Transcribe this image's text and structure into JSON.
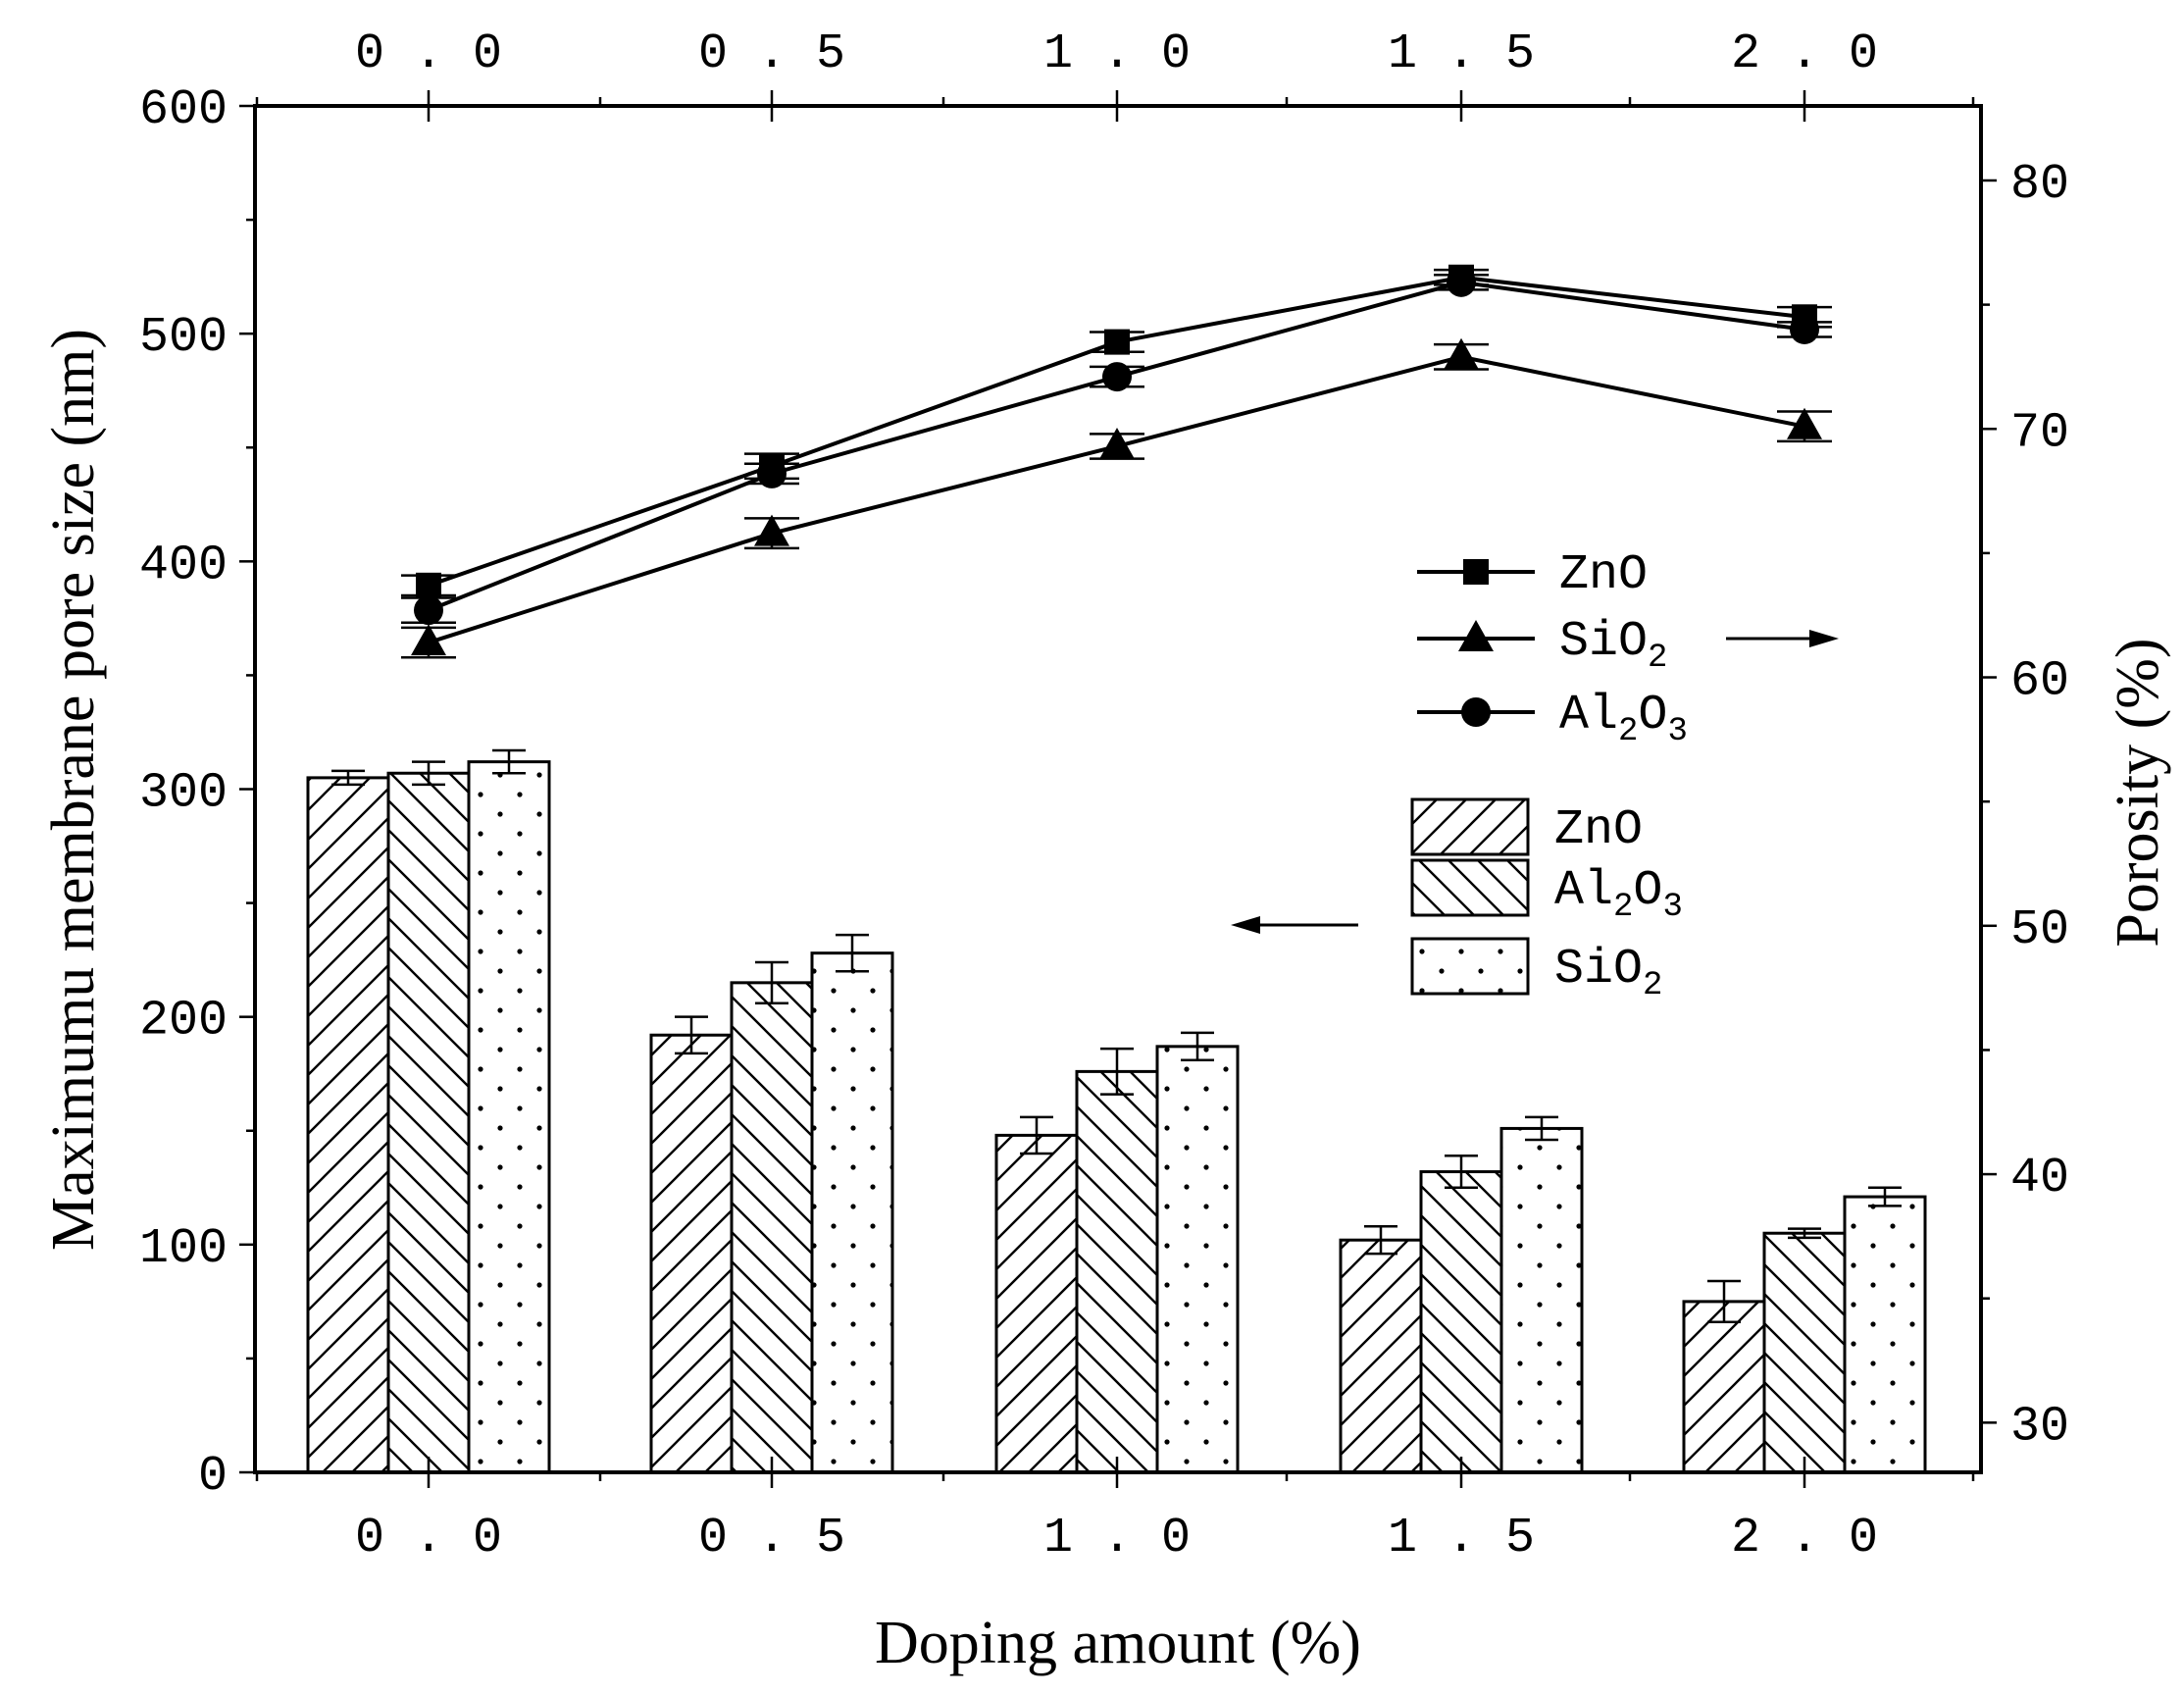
{
  "chart_data": {
    "type": "bar+line",
    "categories": [
      "0.0",
      "0.5",
      "1.0",
      "1.5",
      "2.0"
    ],
    "xlabel": "Doping amount (%)",
    "ylabel_left": "Maximumu membrane pore size (nm)",
    "ylabel_right": "Porosity (%)",
    "ylim_left": [
      0,
      600
    ],
    "yticks_left": [
      "0",
      "100",
      "200",
      "300",
      "400",
      "500",
      "600"
    ],
    "ylim_right": [
      28,
      83
    ],
    "yticks_right": [
      "30",
      "40",
      "50",
      "60",
      "70",
      "80"
    ],
    "bar_series": [
      {
        "name": "ZnO",
        "pattern": "hatch-forward",
        "values": [
          305,
          192,
          148,
          102,
          75
        ],
        "errors": [
          3,
          8,
          8,
          6,
          9
        ]
      },
      {
        "name": "Al2O3",
        "pattern": "hatch-back",
        "values": [
          307,
          215,
          176,
          132,
          105
        ],
        "errors": [
          5,
          9,
          10,
          7,
          2
        ]
      },
      {
        "name": "SiO2",
        "pattern": "dots",
        "values": [
          312,
          228,
          187,
          151,
          121
        ],
        "errors": [
          5,
          8,
          6,
          5,
          4
        ]
      }
    ],
    "line_series": [
      {
        "name": "ZnO",
        "marker": "square",
        "values": [
          63.7,
          68.5,
          73.5,
          76.1,
          74.5
        ],
        "errors": [
          0.4,
          0.5,
          0.4,
          0.3,
          0.4
        ]
      },
      {
        "name": "SiO2",
        "marker": "triangle",
        "values": [
          61.4,
          65.8,
          69.3,
          72.9,
          70.1
        ],
        "errors": [
          0.6,
          0.6,
          0.5,
          0.5,
          0.6
        ]
      },
      {
        "name": "Al2O3",
        "marker": "circle",
        "values": [
          62.7,
          68.2,
          72.1,
          75.9,
          74.0
        ],
        "errors": [
          0.5,
          0.4,
          0.4,
          0.3,
          0.3
        ]
      }
    ],
    "line_legend": [
      {
        "text": "ZnO",
        "marker": "square"
      },
      {
        "base": "SiO",
        "sub": "2",
        "marker": "triangle"
      },
      {
        "parts": [
          "Al",
          "2",
          "O",
          "3"
        ],
        "marker": "circle"
      }
    ],
    "bar_legend": [
      {
        "text": "ZnO",
        "pattern": "hatch-forward"
      },
      {
        "parts": [
          "Al",
          "2",
          "O",
          "3"
        ],
        "pattern": "hatch-back"
      },
      {
        "base": "SiO",
        "sub": "2",
        "pattern": "dots"
      }
    ],
    "annotations": [
      {
        "text": "→ right axis",
        "target": "line legend",
        "direction": "right"
      },
      {
        "text": "← left axis",
        "target": "bar legend",
        "direction": "left"
      }
    ]
  }
}
